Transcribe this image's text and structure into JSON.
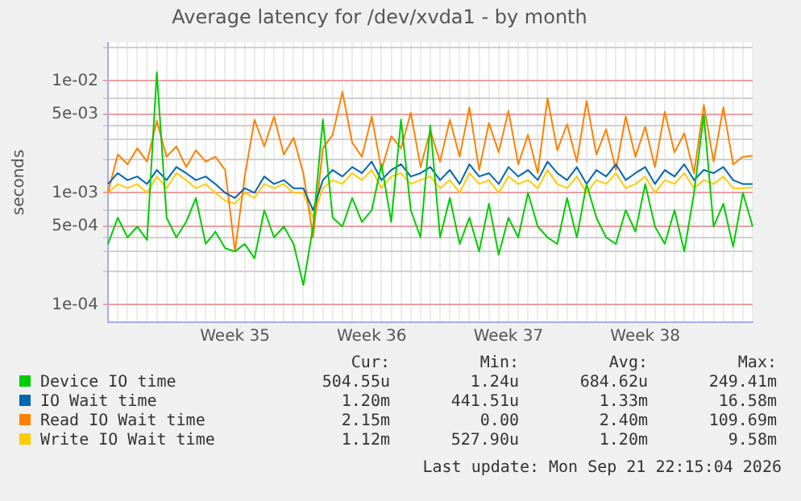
{
  "chart_data": {
    "type": "line",
    "title": "Average latency for /dev/xvda1 - by month",
    "ylabel": "seconds",
    "log": "y",
    "grid": true,
    "legend": "bottom",
    "marker": "none",
    "line_style": "solid",
    "categories": [
      null,
      null,
      null,
      null,
      null,
      null,
      null,
      null,
      null,
      null,
      null,
      null,
      null,
      "Week 35",
      null,
      null,
      null,
      null,
      null,
      null,
      null,
      null,
      null,
      null,
      null,
      null,
      null,
      "Week 36",
      null,
      null,
      null,
      null,
      null,
      null,
      null,
      null,
      null,
      null,
      null,
      null,
      null,
      "Week 37",
      null,
      null,
      null,
      null,
      null,
      null,
      null,
      null,
      null,
      null,
      null,
      null,
      null,
      "Week 38",
      null,
      null,
      null,
      null,
      null,
      null,
      null,
      null,
      null,
      null,
      null
    ],
    "ylim": [
      7e-05,
      0.022
    ],
    "yticks": [
      {
        "value": 0.0001,
        "label": "1e-04"
      },
      {
        "value": 0.0002,
        "label": null
      },
      {
        "value": 0.0003,
        "label": null
      },
      {
        "value": 0.0004,
        "label": null
      },
      {
        "value": 0.0005,
        "label": "5e-04"
      },
      {
        "value": 0.0007,
        "label": null
      },
      {
        "value": 0.001,
        "label": "1e-03"
      },
      {
        "value": 0.002,
        "label": null
      },
      {
        "value": 0.003,
        "label": null
      },
      {
        "value": 0.004,
        "label": null
      },
      {
        "value": 0.005,
        "label": "5e-03"
      },
      {
        "value": 0.007,
        "label": null
      },
      {
        "value": 0.01,
        "label": "1e-02"
      },
      {
        "value": 0.02,
        "label": null
      }
    ],
    "series": [
      {
        "name": "Device IO time",
        "color": "#00cc00",
        "values": [
          0.00035,
          0.0006,
          0.0004,
          0.0005,
          0.00038,
          0.012,
          0.0006,
          0.0004,
          0.00055,
          0.0009,
          0.00035,
          0.00045,
          0.00032,
          0.0003,
          0.00035,
          0.00026,
          0.0007,
          0.0004,
          0.0005,
          0.00035,
          0.00015,
          0.0005,
          0.0045,
          0.0006,
          0.0005,
          0.0009,
          0.00055,
          0.0007,
          0.0018,
          0.00055,
          0.0045,
          0.0007,
          0.0004,
          0.004,
          0.0004,
          0.0009,
          0.00035,
          0.0006,
          0.0003,
          0.0008,
          0.00028,
          0.0006,
          0.0004,
          0.001,
          0.0005,
          0.0004,
          0.00035,
          0.0009,
          0.0004,
          0.0012,
          0.0006,
          0.0004,
          0.00035,
          0.0007,
          0.00045,
          0.0012,
          0.0005,
          0.00035,
          0.0007,
          0.0003,
          0.001,
          0.005,
          0.0005,
          0.0008,
          0.00033,
          0.001,
          0.0005
        ]
      },
      {
        "name": "IO Wait time",
        "color": "#0066b3",
        "values": [
          0.0012,
          0.0015,
          0.0013,
          0.0014,
          0.0012,
          0.0016,
          0.0013,
          0.0017,
          0.0015,
          0.0013,
          0.0014,
          0.0012,
          0.001,
          0.0009,
          0.0011,
          0.001,
          0.0014,
          0.0012,
          0.0013,
          0.0011,
          0.0011,
          0.0007,
          0.0013,
          0.0016,
          0.0014,
          0.0017,
          0.0015,
          0.0019,
          0.0013,
          0.0016,
          0.0018,
          0.0014,
          0.0015,
          0.0017,
          0.0013,
          0.0016,
          0.0012,
          0.0018,
          0.0014,
          0.0015,
          0.0012,
          0.0017,
          0.0014,
          0.0016,
          0.0013,
          0.0019,
          0.0015,
          0.0013,
          0.0017,
          0.0012,
          0.0016,
          0.0014,
          0.0018,
          0.0013,
          0.0015,
          0.0017,
          0.0012,
          0.0016,
          0.0014,
          0.0018,
          0.0013,
          0.0016,
          0.0015,
          0.0017,
          0.0013,
          0.0012,
          0.0012
        ]
      },
      {
        "name": "Read IO Wait time",
        "color": "#ff8000",
        "values": [
          0.001,
          0.0022,
          0.0018,
          0.0025,
          0.0019,
          0.0044,
          0.0021,
          0.0026,
          0.0017,
          0.0024,
          0.0019,
          0.0021,
          0.0016,
          0.0003,
          0.0014,
          0.0045,
          0.0026,
          0.0048,
          0.0022,
          0.0031,
          0.0015,
          0.0004,
          0.0025,
          0.0033,
          0.008,
          0.0028,
          0.0021,
          0.0048,
          0.0016,
          0.0032,
          0.0025,
          0.0052,
          0.0017,
          0.0036,
          0.0019,
          0.0045,
          0.0021,
          0.0058,
          0.0016,
          0.0042,
          0.0023,
          0.0054,
          0.0018,
          0.0033,
          0.0015,
          0.007,
          0.0024,
          0.0041,
          0.0019,
          0.0066,
          0.0022,
          0.0037,
          0.0016,
          0.0048,
          0.0021,
          0.0039,
          0.0017,
          0.0053,
          0.0023,
          0.0034,
          0.0015,
          0.0061,
          0.0019,
          0.0058,
          0.0018,
          0.0021,
          0.00215
        ]
      },
      {
        "name": "Write IO Wait time",
        "color": "#ffcc00",
        "values": [
          0.001,
          0.0012,
          0.0011,
          0.0012,
          0.001,
          0.0014,
          0.0011,
          0.0015,
          0.0013,
          0.0011,
          0.0012,
          0.001,
          0.00085,
          0.0008,
          0.001,
          0.0009,
          0.0012,
          0.0011,
          0.0012,
          0.001,
          0.001,
          0.0006,
          0.0011,
          0.0013,
          0.0012,
          0.0015,
          0.0013,
          0.0016,
          0.0011,
          0.0014,
          0.0015,
          0.0012,
          0.0013,
          0.0014,
          0.0011,
          0.0013,
          0.001,
          0.0015,
          0.0012,
          0.0013,
          0.001,
          0.0014,
          0.0012,
          0.0013,
          0.0011,
          0.0016,
          0.0012,
          0.0011,
          0.0014,
          0.001,
          0.0013,
          0.0012,
          0.0015,
          0.0011,
          0.0012,
          0.0014,
          0.001,
          0.0013,
          0.0012,
          0.0015,
          0.0011,
          0.0013,
          0.0012,
          0.0014,
          0.0011,
          0.0011,
          0.00112
        ]
      }
    ],
    "annotations": [
      "Cur:",
      "Min:",
      "Avg:",
      "Max:",
      "504.55u",
      "1.24u",
      "684.62u",
      "249.41m",
      "1.20m",
      "441.51u",
      "1.33m",
      "16.58m",
      "2.15m",
      "0.00",
      "2.40m",
      "109.69m",
      "1.12m",
      "527.90u",
      "1.20m",
      "9.58m",
      "Last update: Mon Sep 21 22:15:04 2026"
    ]
  }
}
